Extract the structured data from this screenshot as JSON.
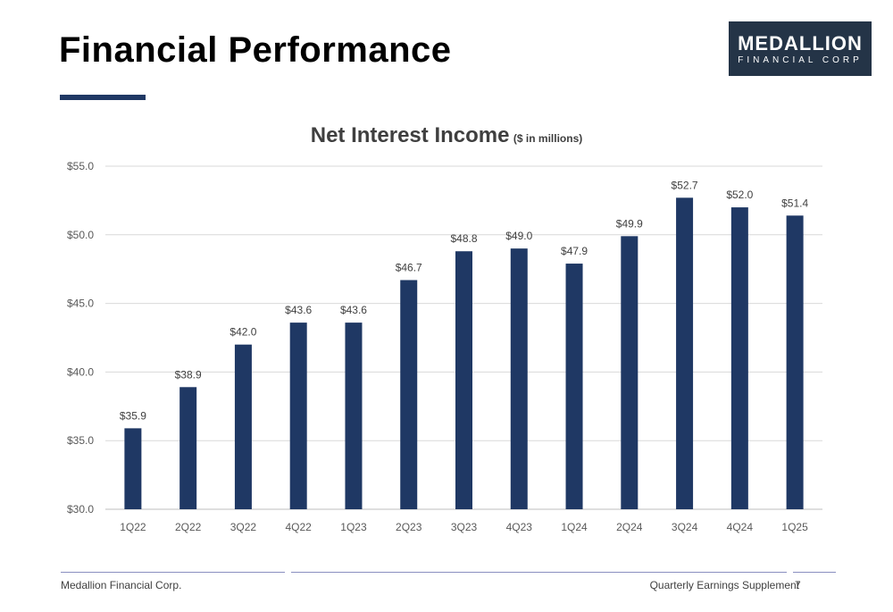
{
  "header": {
    "title": "Financial Performance",
    "logo_main": "MEDALLION",
    "logo_sub": "FINANCIAL CORP"
  },
  "footer": {
    "left": "Medallion Financial Corp.",
    "right": "Quarterly Earnings Supplement",
    "page": "7"
  },
  "colors": {
    "bar": "#1f3864",
    "accent": "#1f3864",
    "logo_bg": "#243447"
  },
  "chart_data": {
    "type": "bar",
    "title": "Net Interest Income",
    "subtitle": "($ in millions)",
    "categories": [
      "1Q22",
      "2Q22",
      "3Q22",
      "4Q22",
      "1Q23",
      "2Q23",
      "3Q23",
      "4Q23",
      "1Q24",
      "2Q24",
      "3Q24",
      "4Q24",
      "1Q25"
    ],
    "values": [
      35.9,
      38.9,
      42.0,
      43.6,
      43.6,
      46.7,
      48.8,
      49.0,
      47.9,
      49.9,
      52.7,
      52.0,
      51.4
    ],
    "data_labels": [
      "$35.9",
      "$38.9",
      "$42.0",
      "$43.6",
      "$43.6",
      "$46.7",
      "$48.8",
      "$49.0",
      "$47.9",
      "$49.9",
      "$52.7",
      "$52.0",
      "$51.4"
    ],
    "y_ticks": [
      30,
      35,
      40,
      45,
      50,
      55
    ],
    "y_tick_labels": [
      "$30.0",
      "$35.0",
      "$40.0",
      "$45.0",
      "$50.0",
      "$55.0"
    ],
    "ylim": [
      30,
      55
    ],
    "grid": true,
    "xlabel": "",
    "ylabel": ""
  }
}
